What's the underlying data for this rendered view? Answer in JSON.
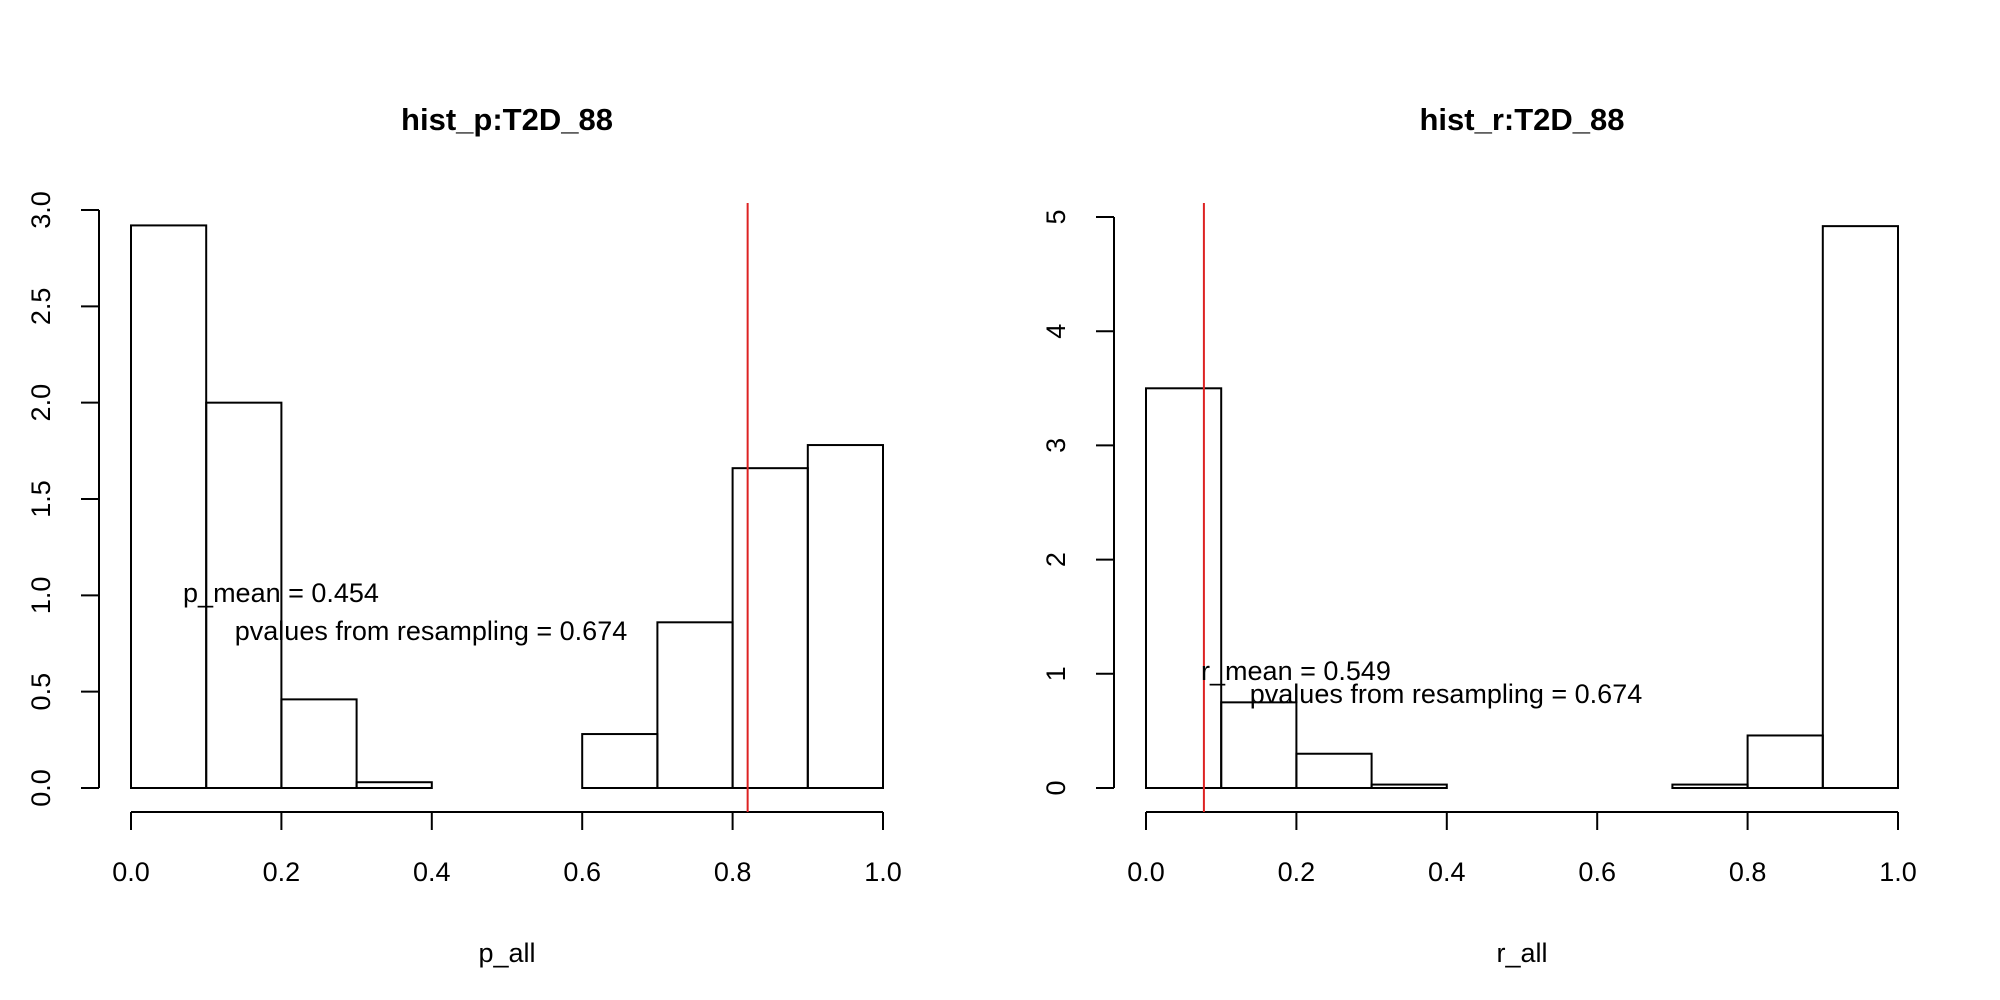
{
  "chart_data": [
    {
      "type": "histogram",
      "title": "hist_p:T2D_88",
      "xlabel": "p_all",
      "bins": [
        0,
        0.1,
        0.2,
        0.3,
        0.4,
        0.5,
        0.6,
        0.7,
        0.8,
        0.9,
        1.0
      ],
      "values": [
        2.92,
        2.0,
        0.46,
        0.03,
        0,
        0,
        0.28,
        0.86,
        1.66,
        1.78
      ],
      "color": "none",
      "edgecolor": "#000000",
      "xlim": [
        0,
        1
      ],
      "ylim": [
        0,
        3
      ],
      "xticks": [
        {
          "value": 0,
          "label": "0.0"
        },
        {
          "value": 0.2,
          "label": "0.2"
        },
        {
          "value": 0.4,
          "label": "0.4"
        },
        {
          "value": 0.6,
          "label": "0.6"
        },
        {
          "value": 0.8,
          "label": "0.8"
        },
        {
          "value": 1,
          "label": "1.0"
        }
      ],
      "yticks": [
        {
          "value": 0,
          "label": "0.0"
        },
        {
          "value": 0.5,
          "label": "0.5"
        },
        {
          "value": 1,
          "label": "1.0"
        },
        {
          "value": 1.5,
          "label": "1.5"
        },
        {
          "value": 2,
          "label": "2.0"
        },
        {
          "value": 2.5,
          "label": "2.5"
        },
        {
          "value": 3,
          "label": "3.0"
        }
      ],
      "vline": 0.82,
      "vline_color": "#dd2222",
      "annotations": [
        "p_mean = 0.454",
        "pvalues from resampling = 0.674"
      ]
    },
    {
      "type": "histogram",
      "title": "hist_r:T2D_88",
      "xlabel": "r_all",
      "bins": [
        0,
        0.1,
        0.2,
        0.3,
        0.4,
        0.5,
        0.6,
        0.7,
        0.8,
        0.9,
        1.0
      ],
      "values": [
        3.5,
        0.75,
        0.3,
        0.03,
        0,
        0,
        0,
        0.03,
        0.46,
        4.92
      ],
      "color": "none",
      "edgecolor": "#000000",
      "xlim": [
        0,
        1
      ],
      "ylim": [
        0,
        5
      ],
      "xticks": [
        {
          "value": 0,
          "label": "0.0"
        },
        {
          "value": 0.2,
          "label": "0.2"
        },
        {
          "value": 0.4,
          "label": "0.4"
        },
        {
          "value": 0.6,
          "label": "0.6"
        },
        {
          "value": 0.8,
          "label": "0.8"
        },
        {
          "value": 1,
          "label": "1.0"
        }
      ],
      "yticks": [
        0,
        1,
        2,
        3,
        4,
        5
      ],
      "vline": 0.077,
      "vline_color": "#dd2222",
      "annotations": [
        "r_mean = 0.549",
        "pvalues from resampling = 0.674"
      ]
    }
  ]
}
